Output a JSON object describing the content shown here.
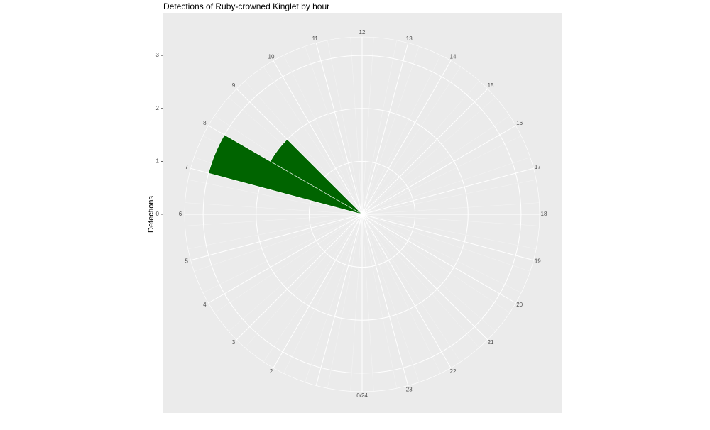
{
  "chart_data": {
    "type": "polar-bar",
    "title": "Detections of Ruby-crowned Kinglet by hour",
    "y_label": "Detections",
    "x": [
      7,
      8
    ],
    "values": [
      3,
      2
    ],
    "color": "#006400",
    "xlim": [
      0,
      24
    ],
    "xticks": [
      {
        "value": 0,
        "label": "0/24"
      },
      {
        "value": 1,
        "label": null
      },
      2,
      3,
      4,
      5,
      6,
      7,
      8,
      9,
      10,
      11,
      12,
      13,
      14,
      15,
      16,
      17,
      18,
      19,
      20,
      21,
      22,
      23
    ],
    "ylim": [
      0,
      3.35
    ],
    "yticks": [
      0,
      1,
      2,
      3
    ],
    "grid": true
  }
}
